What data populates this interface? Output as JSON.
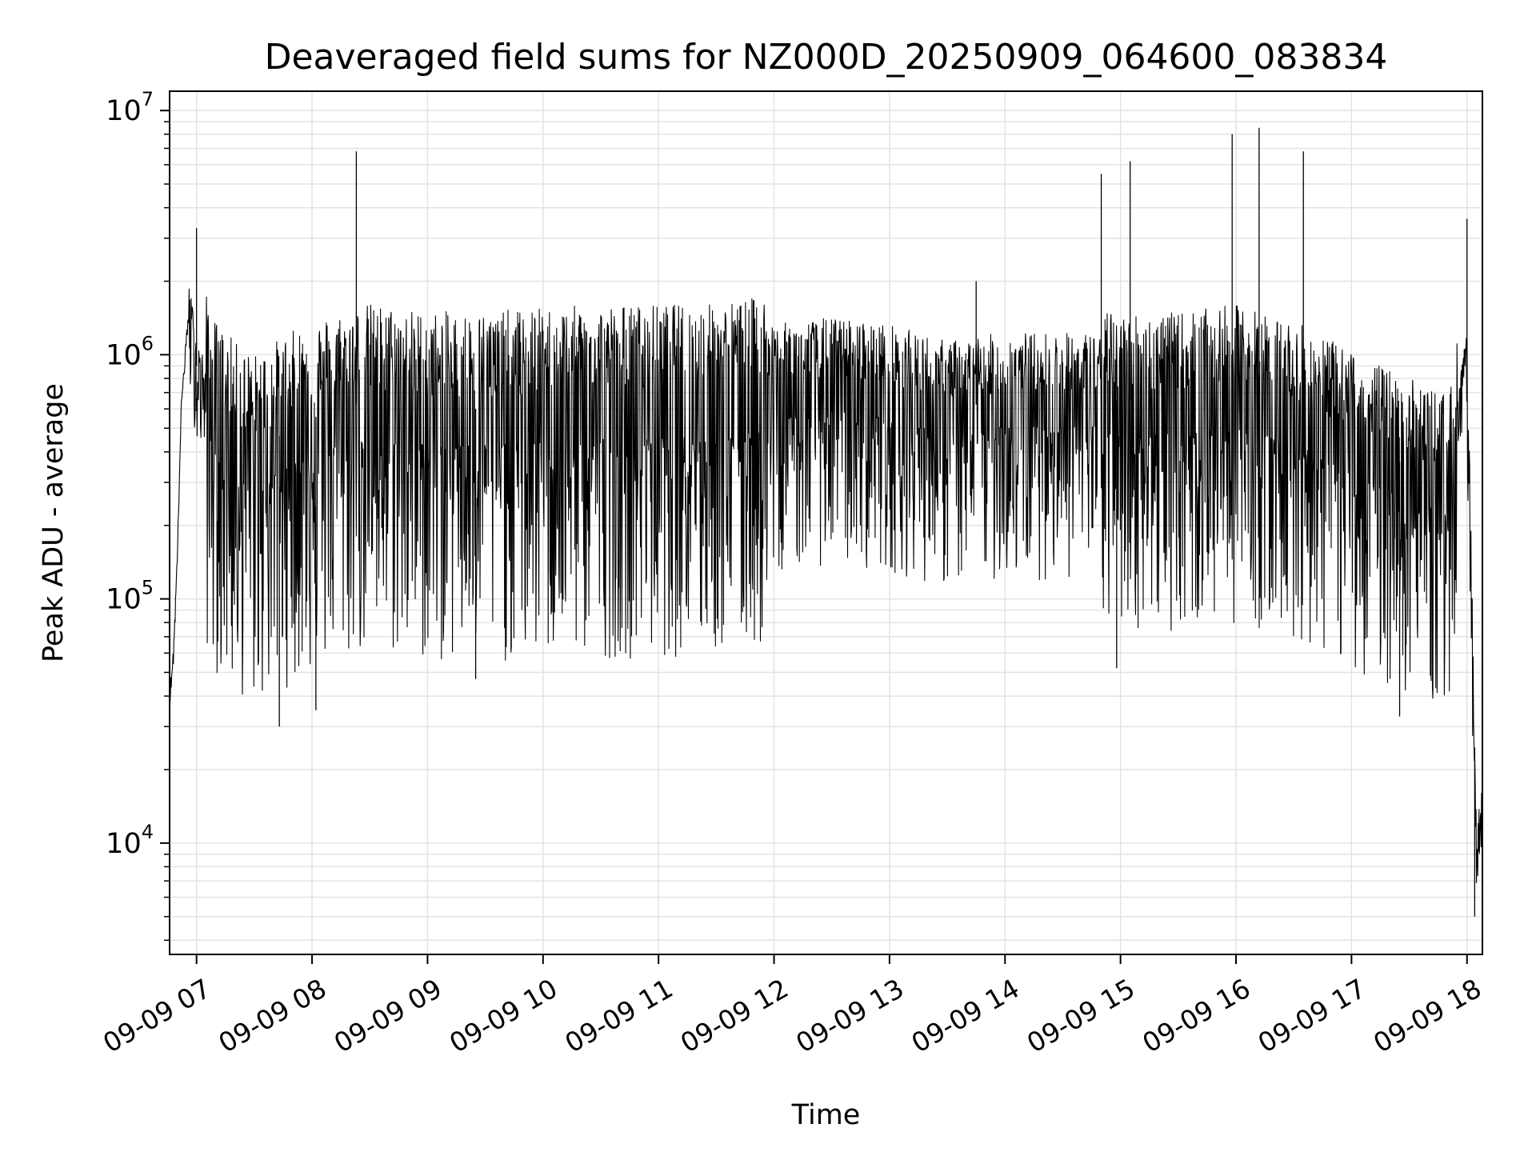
{
  "chart_data": {
    "type": "line",
    "title": "Deaveraged field sums for NZ000D_20250909_064600_083834",
    "xlabel": "Time",
    "ylabel": "Peak ADU - average",
    "yscale": "log",
    "ylim": [
      3500,
      12000000
    ],
    "xlim": [
      "2025-09-09 06:46",
      "2025-09-09 18:08"
    ],
    "grid": true,
    "line_color": "#000000",
    "grid_color": "#e3e3e3",
    "xticks": [
      {
        "value": "2025-09-09 07:00",
        "label": "09-09 07"
      },
      {
        "value": "2025-09-09 08:00",
        "label": "09-09 08"
      },
      {
        "value": "2025-09-09 09:00",
        "label": "09-09 09"
      },
      {
        "value": "2025-09-09 10:00",
        "label": "09-09 10"
      },
      {
        "value": "2025-09-09 11:00",
        "label": "09-09 11"
      },
      {
        "value": "2025-09-09 12:00",
        "label": "09-09 12"
      },
      {
        "value": "2025-09-09 13:00",
        "label": "09-09 13"
      },
      {
        "value": "2025-09-09 14:00",
        "label": "09-09 14"
      },
      {
        "value": "2025-09-09 15:00",
        "label": "09-09 15"
      },
      {
        "value": "2025-09-09 16:00",
        "label": "09-09 16"
      },
      {
        "value": "2025-09-09 17:00",
        "label": "09-09 17"
      },
      {
        "value": "2025-09-09 18:00",
        "label": "09-09 18"
      }
    ],
    "yticks": [
      {
        "value": 10000,
        "base": "10",
        "exp": "4"
      },
      {
        "value": 100000,
        "base": "10",
        "exp": "5"
      },
      {
        "value": 1000000,
        "base": "10",
        "exp": "6"
      },
      {
        "value": 10000000,
        "base": "10",
        "exp": "7"
      }
    ],
    "series": [
      {
        "x": [
          "2025-09-09 06:46",
          "2025-09-09 06:48",
          "2025-09-09 06:50",
          "2025-09-09 06:52",
          "2025-09-09 06:54",
          "2025-09-09 06:56",
          "2025-09-09 06:58",
          "2025-09-09 07:00",
          "2025-09-09 07:05",
          "2025-09-09 07:10",
          "2025-09-09 07:20",
          "2025-09-09 07:30",
          "2025-09-09 07:40",
          "2025-09-09 07:50",
          "2025-09-09 08:00",
          "2025-09-09 08:15",
          "2025-09-09 08:30",
          "2025-09-09 09:00",
          "2025-09-09 09:30",
          "2025-09-09 10:00",
          "2025-09-09 10:30",
          "2025-09-09 11:00",
          "2025-09-09 11:30",
          "2025-09-09 12:00",
          "2025-09-09 12:30",
          "2025-09-09 13:00",
          "2025-09-09 13:30",
          "2025-09-09 14:00",
          "2025-09-09 14:30",
          "2025-09-09 15:00",
          "2025-09-09 15:30",
          "2025-09-09 16:00",
          "2025-09-09 16:30",
          "2025-09-09 17:00",
          "2025-09-09 17:30",
          "2025-09-09 17:50",
          "2025-09-09 18:00",
          "2025-09-09 18:05",
          "2025-09-09 18:08"
        ],
        "y": [
          40000,
          60000,
          150000,
          600000,
          1000000,
          1500000,
          1200000,
          900000,
          700000,
          550000,
          450000,
          400000,
          450000,
          500000,
          550000,
          600000,
          650000,
          600000,
          600000,
          620000,
          640000,
          640000,
          650000,
          700000,
          750000,
          700000,
          600000,
          650000,
          650000,
          650000,
          650000,
          700000,
          600000,
          450000,
          350000,
          300000,
          900000,
          10000,
          14000
        ]
      }
    ],
    "spikes": [
      {
        "x": "2025-09-09 07:00",
        "y": 3300000
      },
      {
        "x": "2025-09-09 08:23",
        "y": 6800000
      },
      {
        "x": "2025-09-09 13:45",
        "y": 2000000
      },
      {
        "x": "2025-09-09 14:50",
        "y": 5500000
      },
      {
        "x": "2025-09-09 15:05",
        "y": 6200000
      },
      {
        "x": "2025-09-09 15:58",
        "y": 8000000
      },
      {
        "x": "2025-09-09 16:12",
        "y": 8500000
      },
      {
        "x": "2025-09-09 16:35",
        "y": 6800000
      },
      {
        "x": "2025-09-09 18:00",
        "y": 3600000
      }
    ],
    "dips": [
      {
        "x": "2025-09-09 07:43",
        "y": 30000
      },
      {
        "x": "2025-09-09 08:02",
        "y": 35000
      },
      {
        "x": "2025-09-09 09:25",
        "y": 47000
      },
      {
        "x": "2025-09-09 14:58",
        "y": 52000
      },
      {
        "x": "2025-09-09 17:25",
        "y": 33000
      },
      {
        "x": "2025-09-09 18:04",
        "y": 5000
      }
    ]
  }
}
